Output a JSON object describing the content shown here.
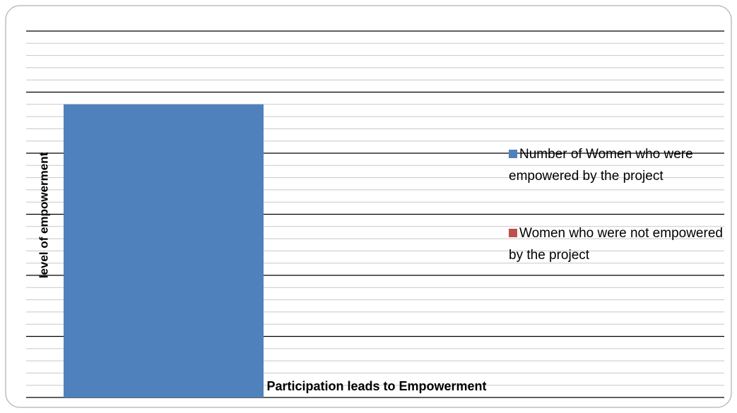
{
  "chart_data": {
    "type": "bar",
    "xlabel": "Participation leads to Empowerment",
    "ylabel": "level of empowerment",
    "categories": [
      null
    ],
    "series": [
      {
        "name": "Number of Women who were empowered by the project",
        "color": "#4f81bd",
        "values": [
          96
        ]
      },
      {
        "name": "Women who were not empowered by the project",
        "color": "#c0504d",
        "values": [
          0
        ]
      }
    ],
    "ylim": [
      0,
      120
    ],
    "yticks": [
      0,
      20,
      40,
      60,
      80,
      100,
      120
    ],
    "yminorticks": [
      4,
      8,
      12,
      16,
      24,
      28,
      32,
      36,
      44,
      48,
      52,
      56,
      64,
      68,
      72,
      76,
      84,
      88,
      92,
      96,
      104,
      108,
      112,
      116
    ],
    "grid": true,
    "legend": "right"
  }
}
